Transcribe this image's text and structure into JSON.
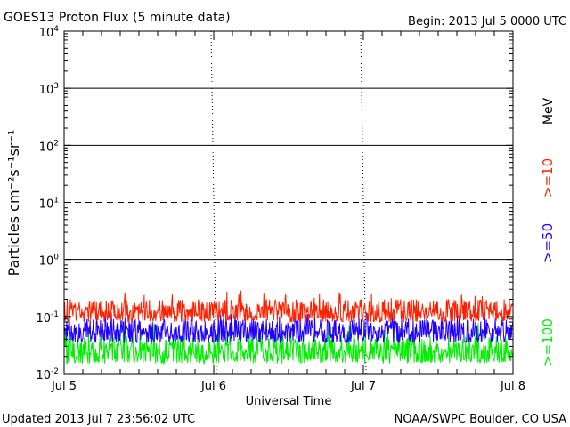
{
  "header": {
    "title": "GOES13 Proton Flux (5 minute data)",
    "begin": "Begin: 2013 Jul 5 0000 UTC"
  },
  "footer": {
    "updated": "Updated 2013 Jul  7 23:56:02 UTC",
    "credit": "NOAA/SWPC Boulder, CO USA"
  },
  "chart_data": {
    "type": "line",
    "title": "GOES13 Proton Flux (5 minute data)",
    "xlabel": "Universal Time",
    "ylabel": "Particles cm⁻²s⁻¹sr⁻¹",
    "y_scale": "log",
    "ylim": [
      0.01,
      10000
    ],
    "x_range_days": [
      0,
      3
    ],
    "x_tick_labels": [
      "Jul 5",
      "Jul 6",
      "Jul 7",
      "Jul 8"
    ],
    "y_tick_labels": [
      {
        "base": "10",
        "exp": "4"
      },
      {
        "base": "10",
        "exp": "3"
      },
      {
        "base": "10",
        "exp": "2"
      },
      {
        "base": "10",
        "exp": "1"
      },
      {
        "base": "10",
        "exp": "0"
      },
      {
        "base": "10",
        "exp": "-1"
      },
      {
        "base": "10",
        "exp": "-2"
      }
    ],
    "thresholds": [
      {
        "value": 10,
        "style": "dashed"
      },
      {
        "value": 1000,
        "style": "solid"
      },
      {
        "value": 100,
        "style": "solid"
      },
      {
        "value": 1,
        "style": "solid"
      }
    ],
    "energy_unit": "MeV",
    "series": [
      {
        "name": ">=10",
        "color": "#ff2000",
        "typical_low": 0.08,
        "typical_high": 0.2,
        "peak": 0.3
      },
      {
        "name": ">=50",
        "color": "#2000ff",
        "typical_low": 0.035,
        "typical_high": 0.09,
        "peak": 0.12
      },
      {
        "name": ">=100",
        "color": "#00ee00",
        "typical_low": 0.015,
        "typical_high": 0.045,
        "peak": 0.08
      }
    ],
    "grid": false
  }
}
